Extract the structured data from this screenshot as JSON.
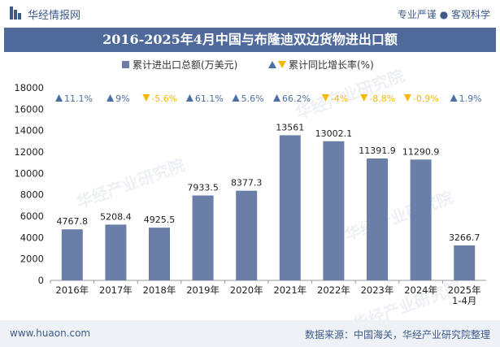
{
  "header": {
    "brand": "华经情报网",
    "slogan": "专业严谨 ● 客观科学"
  },
  "title": "2016-2025年4月中国与布隆迪双边货物进出口额",
  "legend": {
    "bar_label": "累计进出口总额(万美元)",
    "growth_label": "累计同比增长率(%)"
  },
  "footer": {
    "site": "www.huaon.com",
    "source": "数据来源：中国海关，华经产业研究院整理"
  },
  "colors": {
    "bar": "#6a7ea8",
    "up": "#4a6fa5",
    "down": "#f5b800",
    "title_bg": "#4f6a9a"
  },
  "chart_data": {
    "type": "bar",
    "categories": [
      "2016年",
      "2017年",
      "2018年",
      "2019年",
      "2020年",
      "2021年",
      "2022年",
      "2023年",
      "2024年",
      "2025年\n1-4月"
    ],
    "series": [
      {
        "name": "累计进出口总额(万美元)",
        "values": [
          4767.8,
          5208.4,
          4925.5,
          7933.5,
          8377.3,
          13561,
          13002.1,
          11391.9,
          11290.9,
          3266.7
        ],
        "labels": [
          "4767.8",
          "5208.4",
          "4925.5",
          "7933.5",
          "8377.3",
          "13561",
          "13002.1",
          "11391.9",
          "11290.9",
          "3266.7"
        ]
      },
      {
        "name": "累计同比增长率(%)",
        "values": [
          11.1,
          9,
          -5.6,
          61.1,
          5.6,
          66.2,
          -4,
          -8.8,
          -0.9,
          1.9
        ],
        "labels": [
          "11.1%",
          "9%",
          "-5.6%",
          "61.1%",
          "5.6%",
          "66.2%",
          "-4%",
          "-8.8%",
          "-0.9%",
          "1.9%"
        ]
      }
    ],
    "ylim": [
      0,
      18000
    ],
    "yticks": [
      0,
      2000,
      4000,
      6000,
      8000,
      10000,
      12000,
      14000,
      16000,
      18000
    ],
    "legend_position": "top-center"
  },
  "watermark": "华经产业研究院"
}
